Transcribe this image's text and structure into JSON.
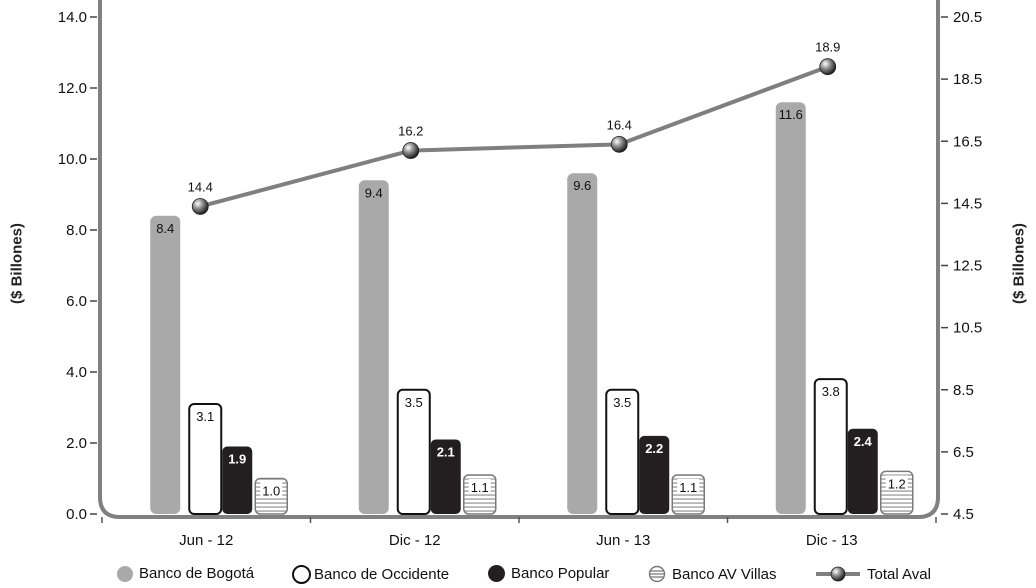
{
  "chart_data": {
    "type": "bar",
    "categories": [
      "Jun - 12",
      "Dic - 12",
      "Jun - 13",
      "Dic - 13"
    ],
    "series": [
      {
        "name": "Banco de Bogotá",
        "values": [
          8.4,
          9.4,
          9.6,
          11.6
        ],
        "color": "#a9a9a9",
        "axis": "left"
      },
      {
        "name": "Banco de Occidente",
        "values": [
          3.1,
          3.5,
          3.5,
          3.8
        ],
        "color": "#ffffff",
        "axis": "left"
      },
      {
        "name": "Banco Popular",
        "values": [
          1.9,
          2.1,
          2.2,
          2.4
        ],
        "color": "#231f20",
        "axis": "left"
      },
      {
        "name": "Banco AV Villas",
        "values": [
          1.0,
          1.1,
          1.1,
          1.2
        ],
        "color": "#ffffff",
        "pattern": "horizontal-stripes",
        "axis": "left"
      }
    ],
    "line_series": {
      "name": "Total Aval",
      "type": "line",
      "values": [
        14.4,
        16.2,
        16.4,
        18.9
      ],
      "color": "#7f7f7f",
      "axis": "right"
    },
    "data_labels": {
      "Banco de Bogotá": [
        "8.4",
        "9.4",
        "9.6",
        "11.6"
      ],
      "Banco de Occidente": [
        "3.1",
        "3.5",
        "3.5",
        "3.8"
      ],
      "Banco Popular": [
        "1.9",
        "2.1",
        "2.2",
        "2.4"
      ],
      "Banco AV Villas": [
        "1.0",
        "1.1",
        "1.1",
        "1.2"
      ],
      "Total Aval": [
        "14.4",
        "16.2",
        "16.4",
        "18.9"
      ]
    },
    "ylabel": "($ Billones)",
    "y2label": "($ Billones)",
    "ylim": [
      0,
      14
    ],
    "y2lim": [
      4.5,
      20.5
    ],
    "yticks": [
      "0.0",
      "2.0",
      "4.0",
      "6.0",
      "8.0",
      "10.0",
      "12.0",
      "14.0"
    ],
    "y2ticks": [
      "4.5",
      "6.5",
      "8.5",
      "10.5",
      "12.5",
      "14.5",
      "16.5",
      "18.5",
      "20.5"
    ],
    "legend": {
      "position": "bottom",
      "items": [
        "Banco de Bogotá",
        "Banco de Occidente",
        "Banco Popular",
        "Banco AV Villas",
        "Total Aval"
      ]
    },
    "grid": false
  }
}
